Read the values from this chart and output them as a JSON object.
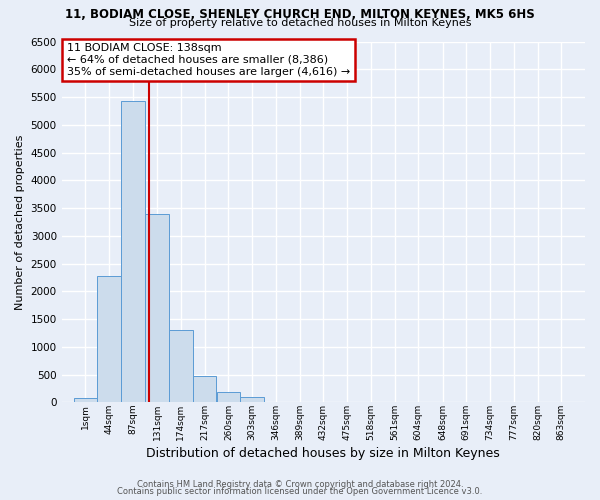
{
  "title": "11, BODIAM CLOSE, SHENLEY CHURCH END, MILTON KEYNES, MK5 6HS",
  "subtitle": "Size of property relative to detached houses in Milton Keynes",
  "xlabel": "Distribution of detached houses by size in Milton Keynes",
  "ylabel": "Number of detached properties",
  "bar_color": "#ccdcec",
  "bar_edge_color": "#5b9bd5",
  "background_color": "#e8eef8",
  "grid_color": "#d0d8e8",
  "bin_labels": [
    "1sqm",
    "44sqm",
    "87sqm",
    "131sqm",
    "174sqm",
    "217sqm",
    "260sqm",
    "303sqm",
    "346sqm",
    "389sqm",
    "432sqm",
    "475sqm",
    "518sqm",
    "561sqm",
    "604sqm",
    "648sqm",
    "691sqm",
    "734sqm",
    "777sqm",
    "820sqm",
    "863sqm"
  ],
  "bin_edges": [
    1,
    44,
    87,
    131,
    174,
    217,
    260,
    303,
    346,
    389,
    432,
    475,
    518,
    561,
    604,
    648,
    691,
    734,
    777,
    820,
    863
  ],
  "bar_heights": [
    75,
    2280,
    5430,
    3390,
    1310,
    480,
    190,
    90,
    0,
    0,
    0,
    0,
    0,
    0,
    0,
    0,
    0,
    0,
    0,
    0
  ],
  "property_size": 138,
  "vline_color": "#cc0000",
  "annotation_title": "11 BODIAM CLOSE: 138sqm",
  "annotation_line1": "← 64% of detached houses are smaller (8,386)",
  "annotation_line2": "35% of semi-detached houses are larger (4,616) →",
  "annotation_box_edge_color": "#cc0000",
  "ylim": [
    0,
    6500
  ],
  "yticks": [
    0,
    500,
    1000,
    1500,
    2000,
    2500,
    3000,
    3500,
    4000,
    4500,
    5000,
    5500,
    6000,
    6500
  ],
  "footer1": "Contains HM Land Registry data © Crown copyright and database right 2024.",
  "footer2": "Contains public sector information licensed under the Open Government Licence v3.0."
}
